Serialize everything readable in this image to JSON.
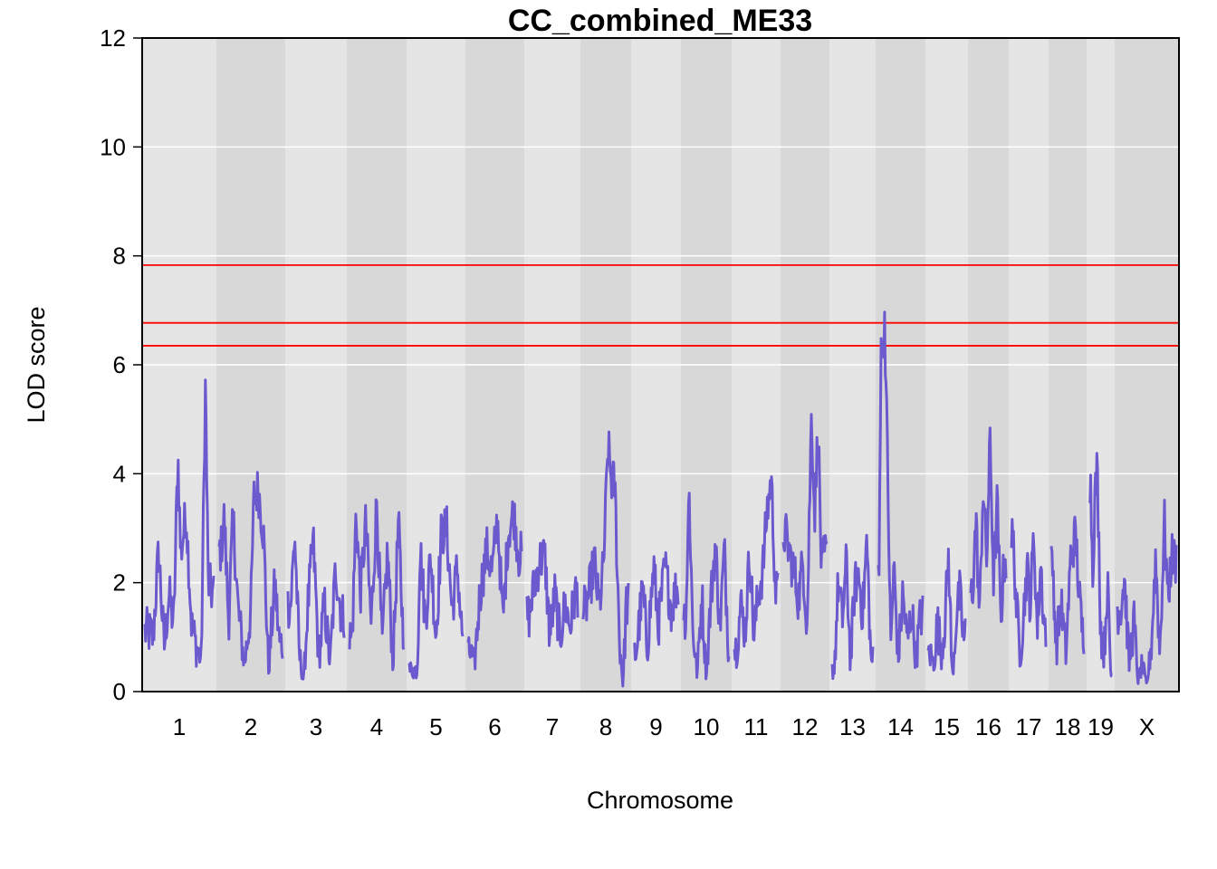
{
  "chart_data": {
    "type": "line",
    "title": "CC_combined_ME33",
    "xlabel": "Chromosome",
    "ylabel": "LOD score",
    "ylim": [
      0,
      12
    ],
    "yticks": [
      0,
      2,
      4,
      6,
      8,
      10,
      12
    ],
    "grid": true,
    "line_color": "#6a5acd",
    "threshold_color": "#ff0000",
    "band_colors": [
      "#e5e5e5",
      "#d8d8d8"
    ],
    "thresholds": [
      7.83,
      6.77,
      6.35
    ],
    "chromosomes": [
      {
        "label": "1",
        "peaks": [
          [
            0.05,
            1.1
          ],
          [
            0.12,
            1.0
          ],
          [
            0.2,
            2.6
          ],
          [
            0.28,
            0.8
          ],
          [
            0.35,
            1.8
          ],
          [
            0.42,
            1.2
          ],
          [
            0.48,
            4.4
          ],
          [
            0.52,
            2.5
          ],
          [
            0.6,
            3.3
          ],
          [
            0.68,
            1.2
          ],
          [
            0.75,
            0.8
          ],
          [
            0.82,
            0.6
          ],
          [
            0.88,
            5.7
          ],
          [
            0.92,
            2.0
          ],
          [
            0.98,
            1.8
          ]
        ]
      },
      {
        "label": "2",
        "peaks": [
          [
            0.03,
            2.6
          ],
          [
            0.08,
            3.2
          ],
          [
            0.15,
            1.3
          ],
          [
            0.22,
            3.2
          ],
          [
            0.3,
            1.5
          ],
          [
            0.4,
            0.5
          ],
          [
            0.5,
            1.5
          ],
          [
            0.55,
            3.6
          ],
          [
            0.62,
            3.7
          ],
          [
            0.7,
            2.9
          ],
          [
            0.78,
            0.4
          ],
          [
            0.88,
            2.0
          ],
          [
            0.95,
            0.9
          ]
        ]
      },
      {
        "label": "3",
        "peaks": [
          [
            0.05,
            1.6
          ],
          [
            0.12,
            2.9
          ],
          [
            0.2,
            0.7
          ],
          [
            0.28,
            0.2
          ],
          [
            0.35,
            1.5
          ],
          [
            0.45,
            2.8
          ],
          [
            0.55,
            0.6
          ],
          [
            0.65,
            1.6
          ],
          [
            0.75,
            0.5
          ],
          [
            0.85,
            2.3
          ],
          [
            0.95,
            1.4
          ]
        ]
      },
      {
        "label": "4",
        "peaks": [
          [
            0.05,
            1.0
          ],
          [
            0.12,
            3.3
          ],
          [
            0.2,
            1.8
          ],
          [
            0.3,
            3.1
          ],
          [
            0.4,
            1.2
          ],
          [
            0.5,
            3.5
          ],
          [
            0.6,
            0.8
          ],
          [
            0.7,
            2.6
          ],
          [
            0.8,
            0.5
          ],
          [
            0.9,
            3.1
          ],
          [
            0.98,
            1.2
          ]
        ]
      },
      {
        "label": "5",
        "peaks": [
          [
            0.05,
            0.4
          ],
          [
            0.15,
            0.4
          ],
          [
            0.2,
            2.7
          ],
          [
            0.3,
            1.3
          ],
          [
            0.4,
            2.5
          ],
          [
            0.5,
            1.0
          ],
          [
            0.6,
            2.9
          ],
          [
            0.7,
            3.0
          ],
          [
            0.8,
            1.5
          ],
          [
            0.9,
            2.3
          ],
          [
            0.98,
            1.1
          ]
        ]
      },
      {
        "label": "6",
        "peaks": [
          [
            0.05,
            0.7
          ],
          [
            0.12,
            0.5
          ],
          [
            0.22,
            1.8
          ],
          [
            0.35,
            2.6
          ],
          [
            0.45,
            2.2
          ],
          [
            0.55,
            3.2
          ],
          [
            0.65,
            1.3
          ],
          [
            0.75,
            2.9
          ],
          [
            0.85,
            3.3
          ],
          [
            0.95,
            2.5
          ]
        ]
      },
      {
        "label": "7",
        "peaks": [
          [
            0.05,
            1.4
          ],
          [
            0.15,
            2.0
          ],
          [
            0.25,
            2.4
          ],
          [
            0.35,
            2.5
          ],
          [
            0.45,
            1.0
          ],
          [
            0.55,
            1.8
          ],
          [
            0.65,
            1.0
          ],
          [
            0.75,
            1.6
          ],
          [
            0.85,
            1.2
          ],
          [
            0.95,
            1.8
          ]
        ]
      },
      {
        "label": "8",
        "peaks": [
          [
            0.05,
            1.5
          ],
          [
            0.15,
            1.9
          ],
          [
            0.25,
            2.4
          ],
          [
            0.35,
            1.5
          ],
          [
            0.45,
            2.3
          ],
          [
            0.55,
            4.5
          ],
          [
            0.62,
            3.9
          ],
          [
            0.7,
            3.8
          ],
          [
            0.8,
            1.0
          ],
          [
            0.88,
            0.1
          ],
          [
            0.95,
            1.6
          ]
        ]
      },
      {
        "label": "9",
        "peaks": [
          [
            0.05,
            0.7
          ],
          [
            0.2,
            1.9
          ],
          [
            0.3,
            0.8
          ],
          [
            0.45,
            2.3
          ],
          [
            0.55,
            1.2
          ],
          [
            0.7,
            2.3
          ],
          [
            0.85,
            1.5
          ],
          [
            0.95,
            1.9
          ]
        ]
      },
      {
        "label": "10",
        "peaks": [
          [
            0.05,
            1.4
          ],
          [
            0.12,
            3.7
          ],
          [
            0.2,
            1.2
          ],
          [
            0.3,
            0.3
          ],
          [
            0.4,
            1.8
          ],
          [
            0.5,
            0.3
          ],
          [
            0.6,
            1.7
          ],
          [
            0.7,
            2.7
          ],
          [
            0.8,
            1.2
          ],
          [
            0.9,
            2.6
          ],
          [
            0.98,
            1.0
          ]
        ]
      },
      {
        "label": "11",
        "peaks": [
          [
            0.05,
            0.8
          ],
          [
            0.15,
            1.6
          ],
          [
            0.25,
            1.1
          ],
          [
            0.35,
            2.6
          ],
          [
            0.45,
            1.0
          ],
          [
            0.55,
            1.8
          ],
          [
            0.65,
            2.2
          ],
          [
            0.75,
            3.3
          ],
          [
            0.85,
            3.9
          ],
          [
            0.95,
            1.8
          ]
        ]
      },
      {
        "label": "12",
        "peaks": [
          [
            0.05,
            2.9
          ],
          [
            0.15,
            2.5
          ],
          [
            0.25,
            2.2
          ],
          [
            0.35,
            1.7
          ],
          [
            0.45,
            2.4
          ],
          [
            0.55,
            1.2
          ],
          [
            0.65,
            5.2
          ],
          [
            0.72,
            3.2
          ],
          [
            0.8,
            4.9
          ],
          [
            0.88,
            2.2
          ],
          [
            0.95,
            2.5
          ]
        ]
      },
      {
        "label": "13",
        "peaks": [
          [
            0.05,
            0.4
          ],
          [
            0.15,
            2.0
          ],
          [
            0.25,
            1.3
          ],
          [
            0.35,
            2.4
          ],
          [
            0.45,
            0.5
          ],
          [
            0.55,
            1.9
          ],
          [
            0.65,
            2.2
          ],
          [
            0.75,
            1.4
          ],
          [
            0.85,
            2.8
          ],
          [
            0.95,
            0.6
          ]
        ]
      },
      {
        "label": "14",
        "peaks": [
          [
            0.02,
            2.2
          ],
          [
            0.06,
            6.8
          ],
          [
            0.1,
            6.0
          ],
          [
            0.14,
            6.9
          ],
          [
            0.2,
            4.5
          ],
          [
            0.28,
            0.8
          ],
          [
            0.35,
            2.3
          ],
          [
            0.45,
            0.6
          ],
          [
            0.55,
            1.8
          ],
          [
            0.65,
            0.9
          ],
          [
            0.75,
            1.5
          ],
          [
            0.85,
            0.6
          ],
          [
            0.95,
            1.4
          ]
        ]
      },
      {
        "label": "15",
        "peaks": [
          [
            0.05,
            0.7
          ],
          [
            0.15,
            0.5
          ],
          [
            0.25,
            1.3
          ],
          [
            0.35,
            0.7
          ],
          [
            0.45,
            1.3
          ],
          [
            0.55,
            2.5
          ],
          [
            0.65,
            0.2
          ],
          [
            0.75,
            1.3
          ],
          [
            0.85,
            1.8
          ],
          [
            0.95,
            1.0
          ]
        ]
      },
      {
        "label": "16",
        "peaks": [
          [
            0.05,
            1.8
          ],
          [
            0.15,
            3.2
          ],
          [
            0.25,
            1.3
          ],
          [
            0.35,
            3.8
          ],
          [
            0.45,
            2.4
          ],
          [
            0.55,
            4.6
          ],
          [
            0.65,
            2.0
          ],
          [
            0.75,
            3.5
          ],
          [
            0.85,
            1.3
          ],
          [
            0.95,
            2.4
          ]
        ]
      },
      {
        "label": "17",
        "peaks": [
          [
            0.05,
            2.8
          ],
          [
            0.15,
            1.5
          ],
          [
            0.25,
            0.7
          ],
          [
            0.35,
            1.4
          ],
          [
            0.45,
            2.3
          ],
          [
            0.55,
            1.6
          ],
          [
            0.65,
            2.9
          ],
          [
            0.75,
            1.1
          ],
          [
            0.85,
            2.4
          ],
          [
            0.95,
            1.2
          ]
        ]
      },
      {
        "label": "18",
        "peaks": [
          [
            0.05,
            2.3
          ],
          [
            0.15,
            0.8
          ],
          [
            0.3,
            1.6
          ],
          [
            0.45,
            0.7
          ],
          [
            0.6,
            2.5
          ],
          [
            0.75,
            2.9
          ],
          [
            0.85,
            1.8
          ],
          [
            0.95,
            1.1
          ]
        ]
      },
      {
        "label": "19",
        "peaks": [
          [
            0.05,
            3.9
          ],
          [
            0.15,
            2.2
          ],
          [
            0.25,
            3.6
          ],
          [
            0.35,
            4.1
          ],
          [
            0.5,
            1.2
          ],
          [
            0.65,
            0.7
          ],
          [
            0.8,
            2.0
          ],
          [
            0.95,
            0.3
          ]
        ]
      },
      {
        "label": "X",
        "peaks": [
          [
            0.05,
            1.5
          ],
          [
            0.12,
            2.1
          ],
          [
            0.2,
            0.5
          ],
          [
            0.28,
            1.3
          ],
          [
            0.35,
            0.2
          ],
          [
            0.42,
            0.5
          ],
          [
            0.5,
            0.1
          ],
          [
            0.58,
            0.9
          ],
          [
            0.65,
            2.5
          ],
          [
            0.72,
            0.7
          ],
          [
            0.8,
            3.1
          ],
          [
            0.86,
            1.7
          ],
          [
            0.92,
            2.5
          ],
          [
            0.98,
            2.4
          ]
        ]
      }
    ]
  }
}
